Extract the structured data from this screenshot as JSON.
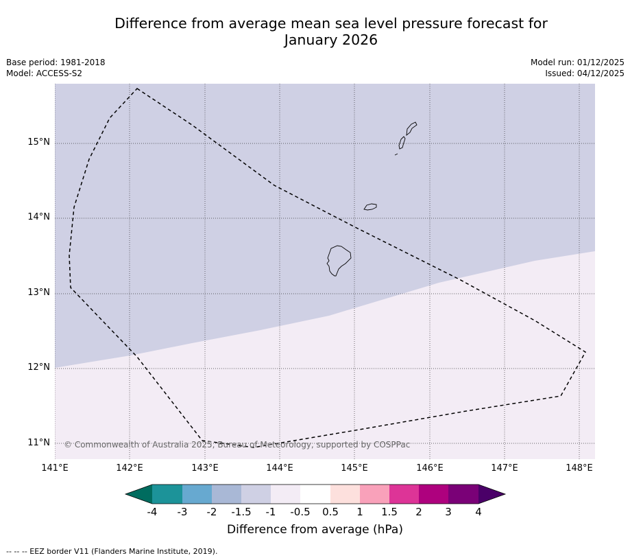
{
  "title_line1": "Difference from average mean sea level pressure forecast for",
  "title_line2": "January 2026",
  "base_period": "Base period: 1981-2018",
  "model": "Model: ACCESS-S2",
  "model_run": "Model run: 01/12/2025",
  "issued": "Issued: 04/12/2025",
  "copyright": "© Commonwealth of Australia 2025, Bureau of Meteorology, supported by COSPPac",
  "lat_labels": [
    "15°N",
    "14°N",
    "13°N",
    "12°N",
    "11°N"
  ],
  "lon_labels": [
    "141°E",
    "142°E",
    "143°E",
    "144°E",
    "145°E",
    "146°E",
    "147°E",
    "148°E"
  ],
  "legend": {
    "ticks": [
      "-4",
      "-3",
      "-2",
      "-1.5",
      "-1",
      "-0.5",
      "0.5",
      "1",
      "1.5",
      "2",
      "3",
      "4"
    ],
    "label": "Difference from average (hPa)",
    "colors": [
      "#006c5f",
      "#1c9399",
      "#67a9d0",
      "#a9b8d6",
      "#cfd0e4",
      "#f3ecf5",
      "#ffffff",
      "#fde0dd",
      "#f9a1ba",
      "#dd3497",
      "#ae017e",
      "#7a0177",
      "#4a0068"
    ]
  },
  "regions": {
    "minus_1_5_to_minus_1_color": "#cfd0e4",
    "minus_1_to_minus_0_5_color": "#f3ecf5"
  },
  "footnote": "--  --  -- EEZ border V11 (Flanders Marine Institute, 2019)."
}
